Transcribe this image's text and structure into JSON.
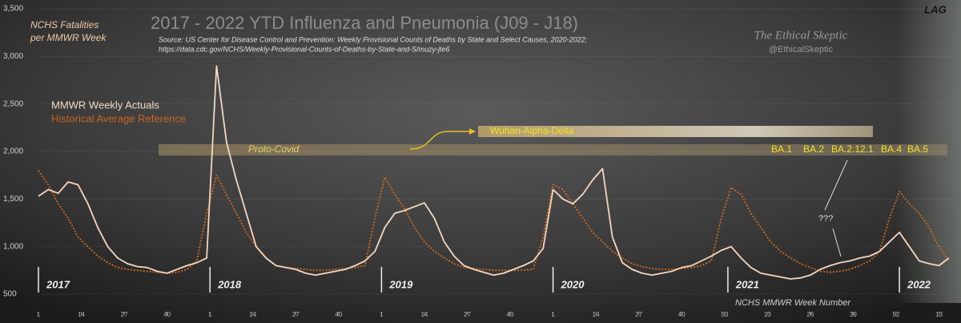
{
  "chart_data": {
    "type": "line",
    "title": "2017 - 2022 YTD Influenza and Pneumonia (J09 - J18)",
    "subtitle": [
      "Source: US Center for Disease Control and Prevention: Weekly Provisional Counts of Deaths by State and Select Causes, 2020-2022;",
      "https://data.cdc.gov/NCHS/Weekly-Provisional-Counts-of-Deaths-by-State-and-S/muzy-jte6"
    ],
    "ylabel": [
      "NCHS Fatalities",
      "per MMWR Week"
    ],
    "xlabel": "NCHS MMWR Week Number",
    "watermark": [
      "The Ethical Skeptic",
      "@EthicalSkeptic"
    ],
    "lag_label": "LAG",
    "band_labels": [
      "Proto-Covid",
      "Wuhan-Alpha-Delta"
    ],
    "variant_labels": [
      "BA.1",
      "BA.2",
      "BA.2.12.1",
      "BA.4",
      "BA.5"
    ],
    "question_label": "???",
    "year_markers": [
      {
        "x": 0,
        "label": "2017"
      },
      {
        "x": 52,
        "label": "2018"
      },
      {
        "x": 104,
        "label": "2019"
      },
      {
        "x": 156,
        "label": "2020"
      },
      {
        "x": 209,
        "label": "2021"
      },
      {
        "x": 261,
        "label": "2022"
      }
    ],
    "x": [
      0,
      3,
      6,
      9,
      12,
      15,
      18,
      21,
      24,
      27,
      30,
      33,
      36,
      39,
      42,
      45,
      48,
      51,
      54,
      57,
      60,
      63,
      66,
      69,
      72,
      75,
      78,
      81,
      84,
      87,
      90,
      93,
      96,
      99,
      102,
      105,
      108,
      111,
      114,
      117,
      120,
      123,
      126,
      129,
      132,
      135,
      138,
      141,
      144,
      147,
      150,
      153,
      156,
      159,
      162,
      165,
      168,
      171,
      174,
      177,
      180,
      183,
      186,
      189,
      192,
      195,
      198,
      201,
      204,
      207,
      210,
      213,
      216,
      219,
      222,
      225,
      228,
      231,
      234,
      237,
      240,
      243,
      246,
      249,
      252,
      255,
      258,
      261,
      264,
      267,
      270,
      273,
      276
    ],
    "series": [
      {
        "name": "MMWR Weekly Actuals",
        "color": "#f7d6bf",
        "dashed": false,
        "values": [
          1530,
          1600,
          1560,
          1680,
          1650,
          1450,
          1200,
          1000,
          880,
          820,
          790,
          780,
          740,
          720,
          760,
          800,
          830,
          880,
          2900,
          2100,
          1700,
          1350,
          1000,
          880,
          800,
          780,
          760,
          720,
          700,
          720,
          740,
          760,
          800,
          850,
          950,
          1200,
          1350,
          1380,
          1420,
          1460,
          1300,
          1050,
          900,
          800,
          760,
          730,
          700,
          720,
          760,
          800,
          850,
          980,
          1600,
          1500,
          1450,
          1550,
          1700,
          1820,
          1100,
          830,
          760,
          720,
          700,
          720,
          740,
          780,
          800,
          850,
          900,
          960,
          1000,
          880,
          780,
          720,
          700,
          680,
          660,
          670,
          700,
          760,
          800,
          830,
          850,
          880,
          900,
          950,
          1050,
          1150,
          1000,
          850,
          820,
          800,
          880
        ]
      },
      {
        "name": "Historical Average Reference",
        "color": "#d2691e",
        "dashed": true,
        "values": [
          1800,
          1650,
          1450,
          1300,
          1100,
          1000,
          900,
          830,
          780,
          760,
          750,
          740,
          730,
          720,
          730,
          760,
          850,
          1350,
          1750,
          1550,
          1350,
          1150,
          1000,
          880,
          800,
          780,
          770,
          760,
          750,
          750,
          760,
          770,
          780,
          800,
          1300,
          1730,
          1550,
          1400,
          1200,
          1050,
          950,
          880,
          820,
          780,
          770,
          760,
          750,
          750,
          750,
          755,
          760,
          1100,
          1650,
          1600,
          1450,
          1300,
          1150,
          1050,
          950,
          880,
          820,
          790,
          770,
          760,
          760,
          770,
          780,
          800,
          850,
          1300,
          1620,
          1550,
          1350,
          1200,
          1050,
          950,
          880,
          820,
          780,
          740,
          730,
          740,
          760,
          800,
          850,
          950,
          1300,
          1580,
          1450,
          1350,
          1200,
          1000,
          850
        ]
      }
    ],
    "xlim": [
      0,
      277
    ],
    "xticks": [
      {
        "value": 0,
        "label": "1"
      },
      {
        "value": 13,
        "label": "14"
      },
      {
        "value": 26,
        "label": "27"
      },
      {
        "value": 39,
        "label": "40"
      },
      {
        "value": 52,
        "label": "1"
      },
      {
        "value": 65,
        "label": "14"
      },
      {
        "value": 78,
        "label": "27"
      },
      {
        "value": 91,
        "label": "40"
      },
      {
        "value": 104,
        "label": "1"
      },
      {
        "value": 117,
        "label": "14"
      },
      {
        "value": 130,
        "label": "27"
      },
      {
        "value": 143,
        "label": "40"
      },
      {
        "value": 156,
        "label": "1"
      },
      {
        "value": 169,
        "label": "14"
      },
      {
        "value": 182,
        "label": "27"
      },
      {
        "value": 195,
        "label": "40"
      },
      {
        "value": 208,
        "label": "53"
      },
      {
        "value": 221,
        "label": "13"
      },
      {
        "value": 234,
        "label": "26"
      },
      {
        "value": 247,
        "label": "39"
      },
      {
        "value": 260,
        "label": "52"
      },
      {
        "value": 273,
        "label": "13"
      }
    ],
    "ylim": [
      500,
      3500
    ],
    "yticks": [
      500,
      {
        "value": 1000,
        "label": "1,000"
      },
      {
        "value": 1500,
        "label": "1,500"
      },
      {
        "value": 2000,
        "label": "2,000"
      },
      {
        "value": 2500,
        "label": "2,500"
      },
      {
        "value": 3000,
        "label": "3,000"
      },
      {
        "value": 3500,
        "label": "3,500"
      }
    ],
    "grid": true
  }
}
